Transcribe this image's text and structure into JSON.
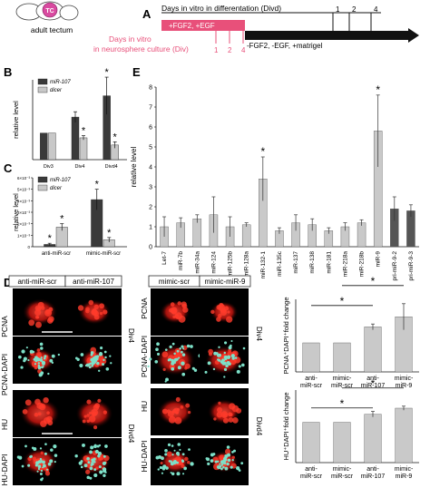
{
  "panel_letters": {
    "A": "A",
    "B": "B",
    "C": "C",
    "D": "D",
    "E": "E"
  },
  "panel_a": {
    "brain_badge": "TC",
    "brain_label": "adult tectum",
    "divd_title": "Days in vitro in differentation (Divd)",
    "divd_ticks": [
      "1",
      "2",
      "4"
    ],
    "div_title_line1": "Days in vitro",
    "div_title_line2": "in neurosphere culture (Div)",
    "div_ticks": [
      "1",
      "2",
      "4"
    ],
    "pink_bar_label": "+FGF2, +EGF",
    "black_bar_label": "-FGF2, -EGF, +matrigel",
    "colors": {
      "pink": "#e8507a",
      "black": "#111111",
      "badge": "#d94aa0"
    }
  },
  "panel_d": {
    "left_headers": [
      "anti-miR-scr",
      "anti-miR-107"
    ],
    "right_headers": [
      "mimic-scr",
      "mimic-miR-9"
    ],
    "row_labels": [
      "PCNA",
      "PCNA-DAPI",
      "HU",
      "HU-DAPI"
    ],
    "side_labels": [
      "Div4",
      "Divd4"
    ],
    "colors": {
      "red": "#e8261f",
      "cyan": "#7de0c8",
      "bg": "#000000"
    }
  },
  "chart_data": [
    {
      "id": "B",
      "type": "bar",
      "ylabel": "relative level",
      "categories": [
        "Div3",
        "Div4",
        "Divd4"
      ],
      "series": [
        {
          "name": "miR-107",
          "values": [
            1.0,
            1.6,
            2.4
          ],
          "errors": [
            0,
            0.2,
            0.7
          ],
          "color": "#3a3a3a"
        },
        {
          "name": "dicer",
          "values": [
            1.0,
            0.82,
            0.55
          ],
          "errors": [
            0,
            0.08,
            0.12
          ],
          "color": "#c8c8c8"
        }
      ],
      "ylim": [
        0,
        3
      ],
      "significance": [
        [
          1,
          1
        ],
        [
          2,
          0
        ],
        [
          2,
          1
        ]
      ],
      "significance_mark": "*",
      "legend_position": "top-left"
    },
    {
      "id": "C",
      "type": "bar",
      "ylabel": "relative level",
      "yticks": [
        "0",
        "1×10⁻³",
        "2×10⁻³",
        "3×10⁻³",
        "4×10⁻³",
        "5×10⁻³",
        "6×10⁻³"
      ],
      "categories": [
        "anti-miR-scr",
        "mimic-miR-scr"
      ],
      "series": [
        {
          "name": "miR-107",
          "values": [
            0.0002,
            0.0041
          ],
          "errors": [
            0.0001,
            0.0009
          ],
          "color": "#3a3a3a"
        },
        {
          "name": "dicer",
          "values": [
            0.0017,
            0.0006
          ],
          "errors": [
            0.0003,
            0.0002
          ],
          "color": "#c8c8c8"
        }
      ],
      "ylim": [
        0,
        0.006
      ],
      "significance": [
        [
          0,
          0
        ],
        [
          0,
          1
        ],
        [
          1,
          0
        ],
        [
          1,
          1
        ]
      ],
      "significance_mark": "*",
      "legend_position": "top-left"
    },
    {
      "id": "E",
      "type": "bar",
      "ylabel": "relative level",
      "categories": [
        "Let-7",
        "miR-7b",
        "miR-34a",
        "miR-124",
        "miR-125b",
        "miR-128a",
        "miR-132-1",
        "miR-135c",
        "miR-137",
        "miR-138",
        "miR-181",
        "miR-218a",
        "miR-218b",
        "miR-9",
        "pri-miR-9-2",
        "pri-miR-9-3"
      ],
      "values": [
        1.0,
        1.2,
        1.4,
        1.6,
        1.0,
        1.1,
        3.4,
        0.8,
        1.2,
        1.1,
        0.8,
        1.0,
        1.2,
        5.8,
        1.9,
        1.8
      ],
      "errors": [
        0.5,
        0.25,
        0.2,
        0.9,
        0.5,
        0.1,
        1.1,
        0.15,
        0.4,
        0.3,
        0.15,
        0.2,
        0.15,
        1.8,
        0.6,
        0.3
      ],
      "bar_colors": [
        "#c9c9c9",
        "#c9c9c9",
        "#c9c9c9",
        "#c9c9c9",
        "#c9c9c9",
        "#c9c9c9",
        "#c9c9c9",
        "#c9c9c9",
        "#c9c9c9",
        "#c9c9c9",
        "#c9c9c9",
        "#c9c9c9",
        "#c9c9c9",
        "#c9c9c9",
        "#555555",
        "#555555"
      ],
      "ylim": [
        0,
        8
      ],
      "yticks": [
        0,
        1,
        2,
        3,
        4,
        5,
        6,
        7,
        8
      ],
      "significance": [
        6,
        13
      ],
      "significance_mark": "*"
    },
    {
      "id": "D-top",
      "type": "bar",
      "ylabel": "PCNA⁺DAPI⁺fold change",
      "categories": [
        "anti-\nmiR-scr",
        "mimic-\nmiR-scr",
        "anti-\nmiR-107",
        "mimic-\nmiR-9"
      ],
      "values": [
        1.0,
        1.0,
        1.55,
        1.9
      ],
      "errors": [
        0,
        0,
        0.1,
        0.45
      ],
      "ylim": [
        0,
        2.5
      ],
      "color": "#c9c9c9",
      "brackets": [
        [
          0,
          2
        ],
        [
          1,
          3
        ]
      ],
      "significance_mark": "*"
    },
    {
      "id": "D-bottom",
      "type": "bar",
      "ylabel": "HU⁺DAPI⁺fold change",
      "categories": [
        "anti-\nmiR-scr",
        "mimic-\nmiR-scr",
        "anti-\nmiR-107",
        "mimic-\nmiR-9"
      ],
      "values": [
        1.0,
        1.0,
        1.2,
        1.35
      ],
      "errors": [
        0,
        0,
        0.07,
        0.05
      ],
      "ylim": [
        0,
        1.8
      ],
      "color": "#c9c9c9",
      "brackets": [
        [
          0,
          2
        ],
        [
          1,
          3
        ]
      ],
      "significance_mark": "*"
    }
  ]
}
